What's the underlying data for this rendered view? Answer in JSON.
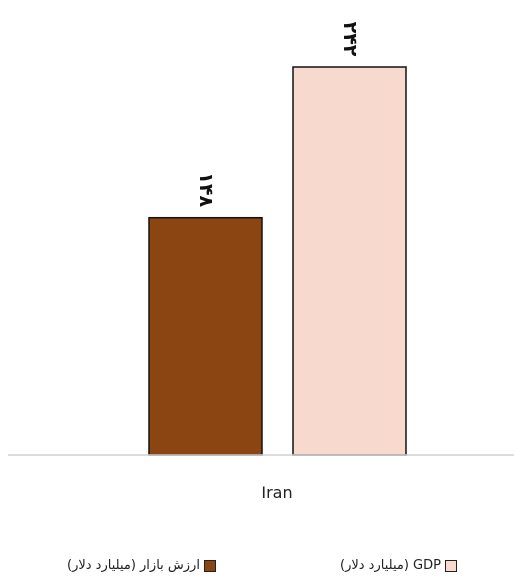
{
  "chart_data": {
    "type": "bar",
    "categories": [
      "Iran"
    ],
    "series": [
      {
        "name": "ارزش بازار (میلیارد دلار)",
        "values": [
          148
        ],
        "value_labels": [
          "۱۴۸"
        ],
        "color": "#8B4513"
      },
      {
        "name": "GDP (میلیارد دلار)",
        "values": [
          242
        ],
        "value_labels": [
          "۲۴۲"
        ],
        "color": "#F8D9CE"
      }
    ],
    "title": "",
    "xlabel": "",
    "ylabel": "",
    "ylim": [
      0,
      242
    ],
    "grid": false,
    "legend_position": "bottom"
  }
}
